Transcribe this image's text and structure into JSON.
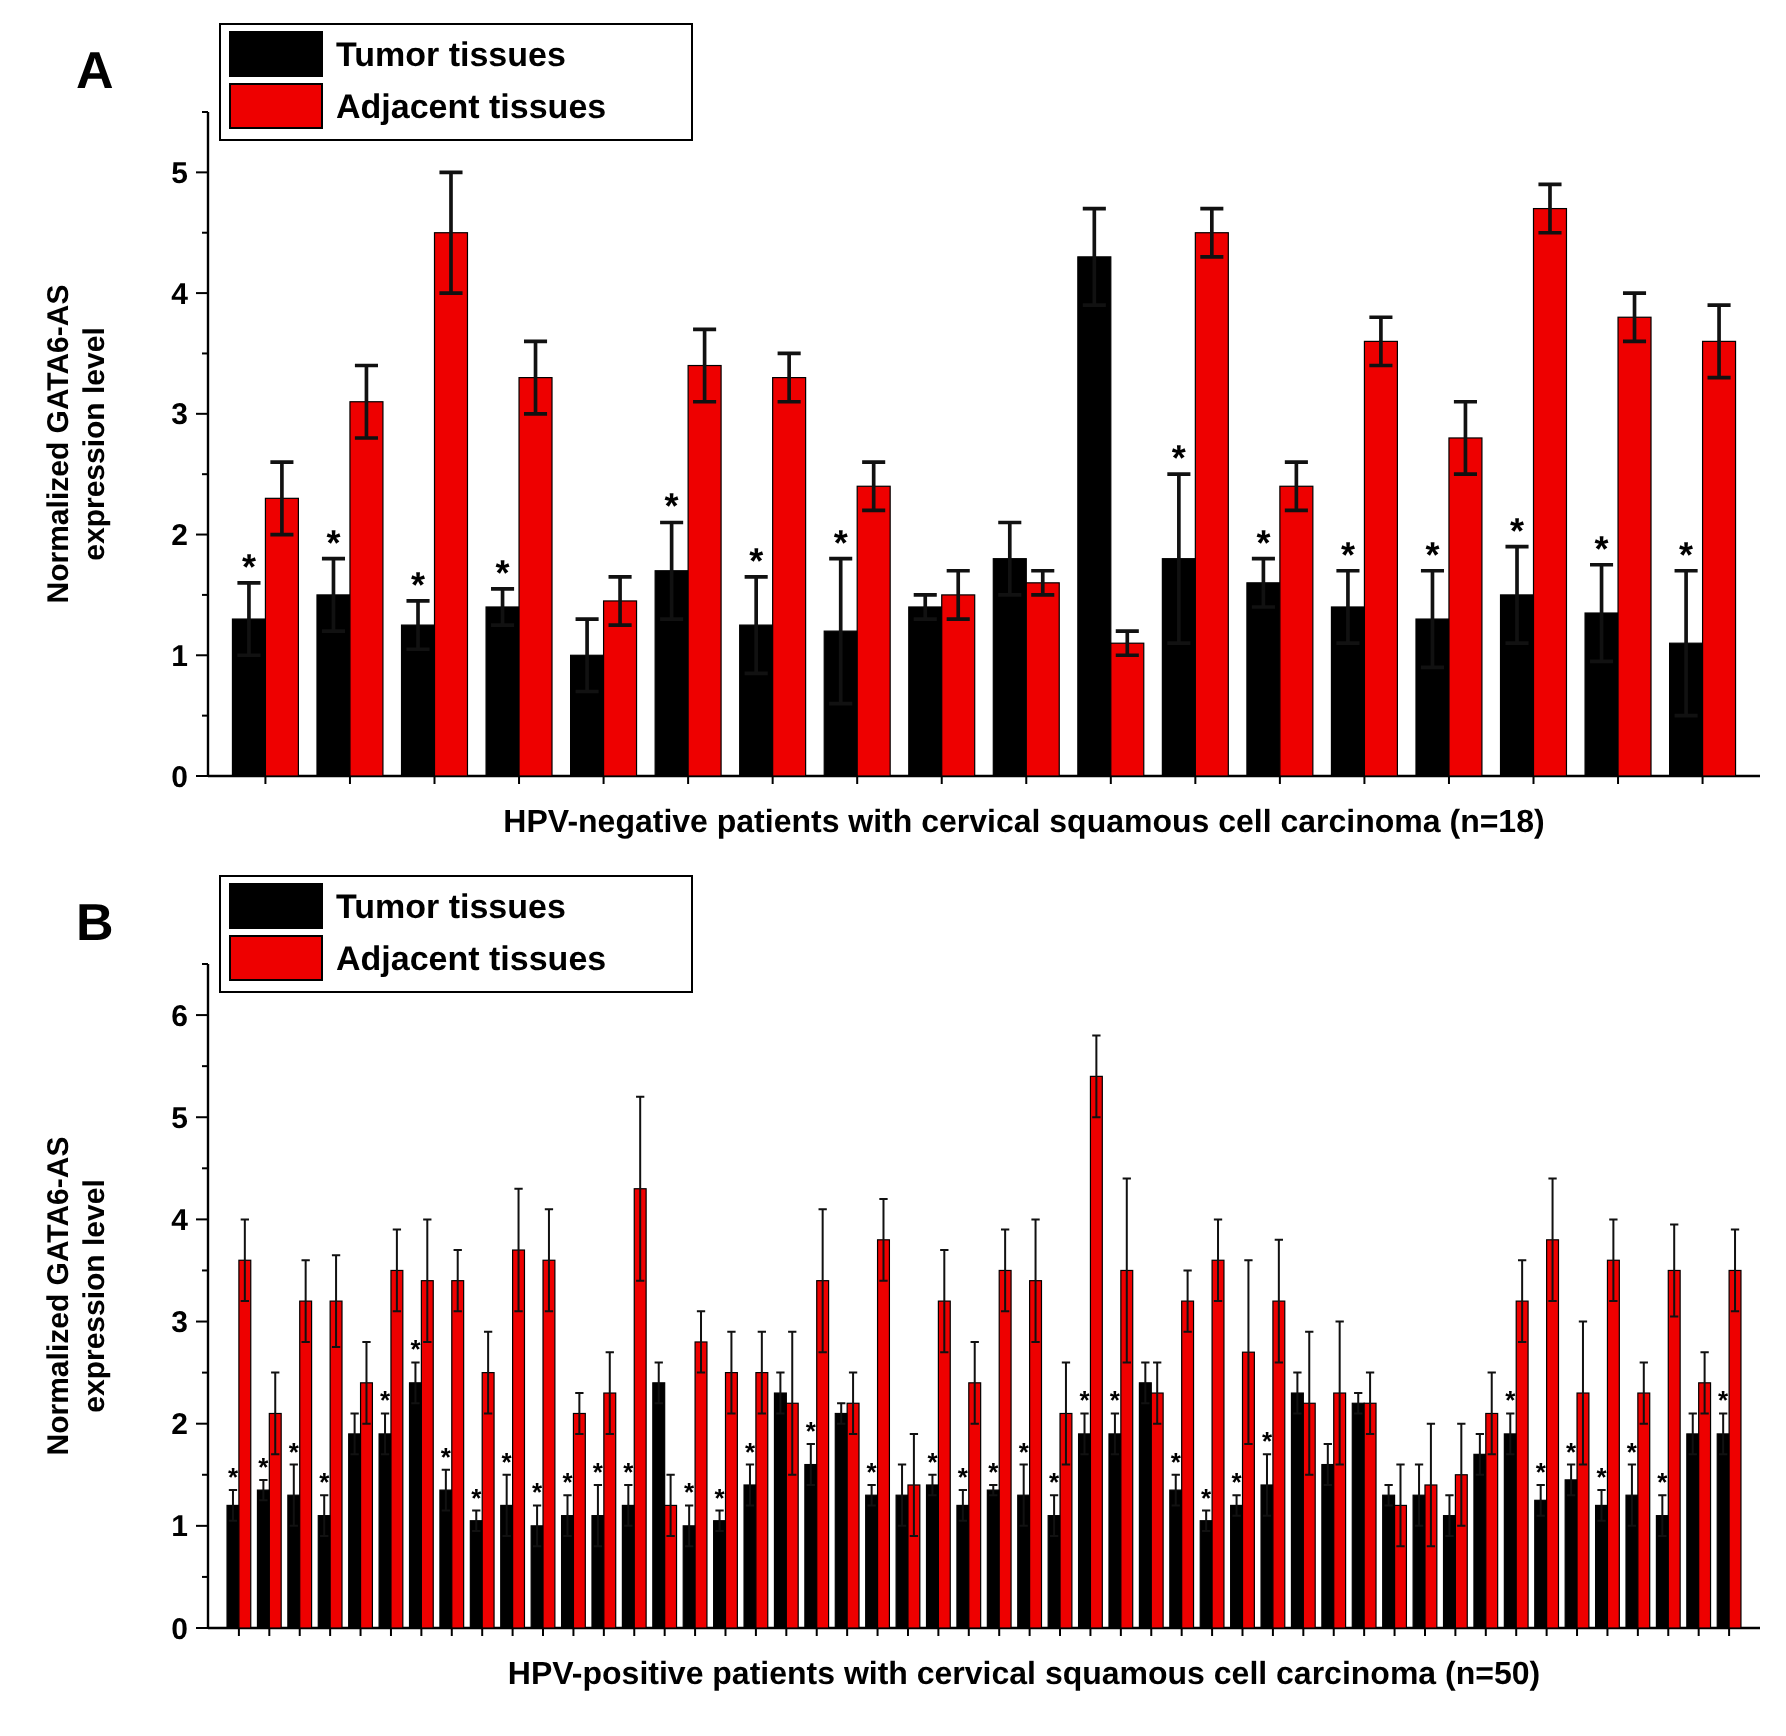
{
  "chart_data": [
    {
      "type": "bar",
      "title": "A",
      "xlabel": "HPV-negative patients with cervical squamous cell carcinoma (n=18)",
      "ylabel": "Normalized GATA6-AS expression level",
      "legend": "top left",
      "ylim": [
        0,
        5.5
      ],
      "yticks": [
        0,
        1,
        2,
        3,
        4,
        5
      ],
      "categories": [
        null,
        null,
        null,
        null,
        null,
        null,
        null,
        null,
        null,
        null,
        null,
        null,
        null,
        null,
        null,
        null,
        null,
        null
      ],
      "series": [
        {
          "name": "Tumor tissues",
          "color": "#000000",
          "values": [
            1.3,
            1.5,
            1.25,
            1.4,
            1.0,
            1.7,
            1.25,
            1.2,
            1.4,
            1.8,
            4.3,
            1.8,
            1.6,
            1.4,
            1.3,
            1.5,
            1.35,
            1.1
          ],
          "errors": [
            0.3,
            0.3,
            0.2,
            0.15,
            0.3,
            0.4,
            0.4,
            0.6,
            0.1,
            0.3,
            0.4,
            0.7,
            0.2,
            0.3,
            0.4,
            0.4,
            0.4,
            0.6
          ],
          "value_labels": [
            "*",
            "*",
            "*",
            "*",
            null,
            "*",
            "*",
            "*",
            null,
            null,
            null,
            "*",
            "*",
            "*",
            "*",
            "*",
            "*",
            "*"
          ]
        },
        {
          "name": "Adjacent tissues",
          "color": "#ee0000",
          "values": [
            2.3,
            3.1,
            4.5,
            3.3,
            1.45,
            3.4,
            3.3,
            2.4,
            1.5,
            1.6,
            1.1,
            4.5,
            2.4,
            3.6,
            2.8,
            4.7,
            3.8,
            3.6
          ],
          "errors": [
            0.3,
            0.3,
            0.5,
            0.3,
            0.2,
            0.3,
            0.2,
            0.2,
            0.2,
            0.1,
            0.1,
            0.2,
            0.2,
            0.2,
            0.3,
            0.2,
            0.2,
            0.3
          ]
        }
      ]
    },
    {
      "type": "bar",
      "title": "B",
      "xlabel": "HPV-positive patients with cervical squamous cell carcinoma (n=50)",
      "ylabel": "Normalized GATA6-AS expression level",
      "legend": "top left",
      "ylim": [
        0,
        6.5
      ],
      "yticks": [
        0,
        1,
        2,
        3,
        4,
        5,
        6
      ],
      "categories": [
        null,
        null,
        null,
        null,
        null,
        null,
        null,
        null,
        null,
        null,
        null,
        null,
        null,
        null,
        null,
        null,
        null,
        null,
        null,
        null,
        null,
        null,
        null,
        null,
        null,
        null,
        null,
        null,
        null,
        null,
        null,
        null,
        null,
        null,
        null,
        null,
        null,
        null,
        null,
        null,
        null,
        null,
        null,
        null,
        null,
        null,
        null,
        null,
        null,
        null
      ],
      "series": [
        {
          "name": "Tumor tissues",
          "color": "#000000",
          "values": [
            1.2,
            1.35,
            1.3,
            1.1,
            1.9,
            1.9,
            2.4,
            1.35,
            1.05,
            1.2,
            1.0,
            1.1,
            1.1,
            1.2,
            2.4,
            1.0,
            1.05,
            1.4,
            2.3,
            1.6,
            2.1,
            1.3,
            1.3,
            1.4,
            1.2,
            1.35,
            1.3,
            1.1,
            1.9,
            1.9,
            2.4,
            1.35,
            1.05,
            1.2,
            1.4,
            2.3,
            1.6,
            2.2,
            1.3,
            1.3,
            1.1,
            1.7,
            1.9,
            1.25,
            1.45,
            1.2,
            1.3,
            1.1,
            1.9,
            1.9
          ],
          "errors": [
            0.15,
            0.1,
            0.3,
            0.2,
            0.2,
            0.2,
            0.2,
            0.2,
            0.1,
            0.3,
            0.2,
            0.2,
            0.3,
            0.2,
            0.2,
            0.2,
            0.1,
            0.2,
            0.2,
            0.2,
            0.1,
            0.1,
            0.3,
            0.1,
            0.15,
            0.05,
            0.3,
            0.2,
            0.2,
            0.2,
            0.2,
            0.15,
            0.1,
            0.1,
            0.3,
            0.2,
            0.2,
            0.1,
            0.1,
            0.3,
            0.2,
            0.2,
            0.2,
            0.15,
            0.15,
            0.15,
            0.3,
            0.2,
            0.2,
            0.2
          ],
          "value_labels": [
            "*",
            "*",
            "*",
            "*",
            null,
            "*",
            "*",
            "*",
            "*",
            "*",
            "*",
            "*",
            "*",
            "*",
            null,
            "*",
            "*",
            "*",
            null,
            "*",
            null,
            "*",
            null,
            "*",
            "*",
            "*",
            "*",
            "*",
            "*",
            "*",
            null,
            "*",
            "*",
            "*",
            "*",
            null,
            null,
            null,
            null,
            null,
            null,
            null,
            "*",
            "*",
            "*",
            "*",
            "*",
            "*",
            null,
            "*"
          ]
        },
        {
          "name": "Adjacent tissues",
          "color": "#ee0000",
          "values": [
            3.6,
            2.1,
            3.2,
            3.2,
            2.4,
            3.5,
            3.4,
            3.4,
            2.5,
            3.7,
            3.6,
            2.1,
            2.3,
            4.3,
            1.2,
            2.8,
            2.5,
            2.5,
            2.2,
            3.4,
            2.2,
            3.8,
            1.4,
            3.2,
            2.4,
            3.5,
            3.4,
            2.1,
            5.4,
            3.5,
            2.3,
            3.2,
            3.6,
            2.7,
            3.2,
            2.2,
            2.3,
            2.2,
            1.2,
            1.4,
            1.5,
            2.1,
            3.2,
            3.8,
            2.3,
            3.6,
            2.3,
            3.5,
            2.4,
            3.5
          ],
          "errors": [
            0.4,
            0.4,
            0.4,
            0.45,
            0.4,
            0.4,
            0.6,
            0.3,
            0.4,
            0.6,
            0.5,
            0.2,
            0.4,
            0.9,
            0.3,
            0.3,
            0.4,
            0.4,
            0.7,
            0.7,
            0.3,
            0.4,
            0.5,
            0.5,
            0.4,
            0.4,
            0.6,
            0.5,
            0.4,
            0.9,
            0.3,
            0.3,
            0.4,
            0.9,
            0.6,
            0.7,
            0.7,
            0.3,
            0.4,
            0.6,
            0.5,
            0.4,
            0.4,
            0.6,
            0.7,
            0.4,
            0.3,
            0.45,
            0.3,
            0.4
          ]
        }
      ]
    }
  ]
}
